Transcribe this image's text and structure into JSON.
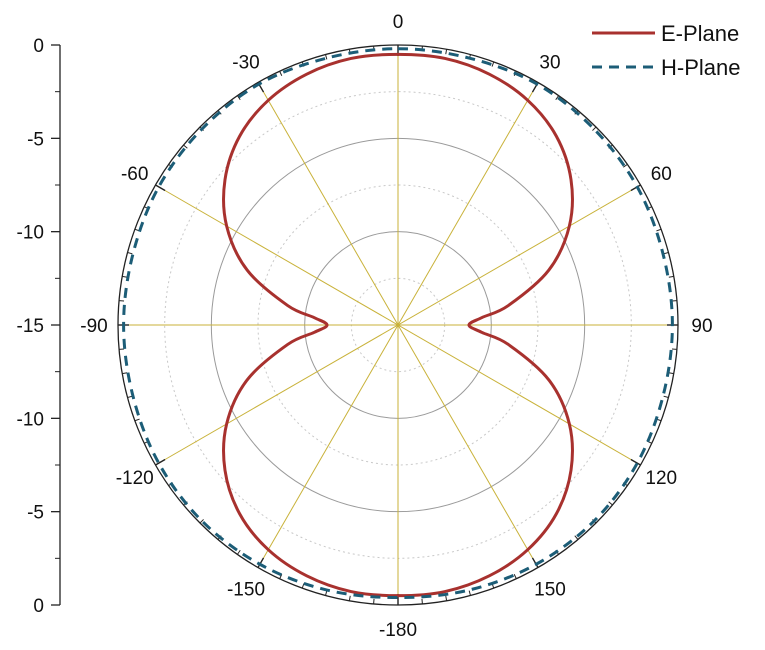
{
  "chart_data": {
    "type": "line",
    "polar": true,
    "radial_axis": {
      "range_db": [
        -15,
        0
      ],
      "tick_labels": [
        "0",
        "-5",
        "-10",
        "-15",
        "-10",
        "-5",
        "0"
      ],
      "tick_values": [
        0,
        -5,
        -10,
        -15,
        -10,
        -5,
        0
      ]
    },
    "angle_labels": [
      {
        "angle": 0,
        "text": "0"
      },
      {
        "angle": 30,
        "text": "30"
      },
      {
        "angle": 60,
        "text": "60"
      },
      {
        "angle": 90,
        "text": "90"
      },
      {
        "angle": 120,
        "text": "120"
      },
      {
        "angle": 150,
        "text": "150"
      },
      {
        "angle": 180,
        "text": "-180"
      },
      {
        "angle": -150,
        "text": "-150"
      },
      {
        "angle": -120,
        "text": "-120"
      },
      {
        "angle": -90,
        "text": "-90"
      },
      {
        "angle": -60,
        "text": "-60"
      },
      {
        "angle": -30,
        "text": "-30"
      }
    ],
    "grid": true,
    "legend_position": "top-right",
    "series": [
      {
        "name": "E-Plane",
        "color": "#a8312e",
        "dash": "solid",
        "angles": [
          0,
          10,
          20,
          30,
          40,
          50,
          60,
          70,
          80,
          85,
          90,
          95,
          100,
          110,
          120,
          130,
          140,
          150,
          160,
          170,
          180,
          190,
          200,
          210,
          220,
          230,
          240,
          250,
          260,
          265,
          270,
          275,
          280,
          290,
          300,
          310,
          320,
          330,
          340,
          350
        ],
        "values_db": [
          -0.5,
          -0.5,
          -0.7,
          -1.1,
          -1.8,
          -2.9,
          -4.4,
          -6.4,
          -9.0,
          -10.5,
          -11.2,
          -10.5,
          -9.0,
          -6.4,
          -4.4,
          -2.9,
          -1.8,
          -1.1,
          -0.7,
          -0.5,
          -0.5,
          -0.5,
          -0.7,
          -1.1,
          -1.8,
          -2.9,
          -4.4,
          -6.4,
          -9.0,
          -10.5,
          -11.2,
          -10.5,
          -9.0,
          -6.4,
          -4.4,
          -2.9,
          -1.8,
          -1.1,
          -0.7,
          -0.5
        ]
      },
      {
        "name": "H-Plane",
        "color": "#1c5d77",
        "dash": "dashed",
        "angles": [
          0,
          15,
          30,
          45,
          60,
          75,
          90,
          105,
          120,
          135,
          150,
          165,
          180,
          195,
          210,
          225,
          240,
          255,
          270,
          285,
          300,
          315,
          330,
          345
        ],
        "values_db": [
          -0.2,
          -0.2,
          -0.1,
          -0.15,
          -0.2,
          -0.3,
          -0.3,
          -0.3,
          -0.2,
          -0.15,
          -0.2,
          -0.3,
          -0.4,
          -0.3,
          -0.2,
          -0.15,
          -0.2,
          -0.3,
          -0.3,
          -0.3,
          -0.2,
          -0.15,
          -0.1,
          -0.2
        ]
      }
    ]
  }
}
